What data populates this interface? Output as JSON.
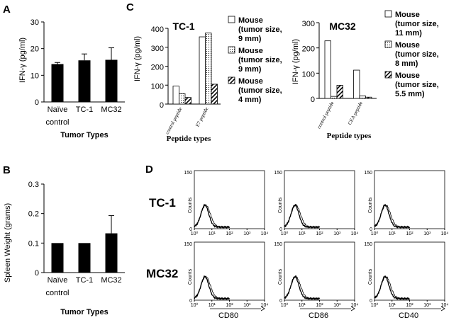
{
  "panels": {
    "A": {
      "letter": "A"
    },
    "B": {
      "letter": "B"
    },
    "C": {
      "letter": "C"
    },
    "D": {
      "letter": "D"
    }
  },
  "colors": {
    "bar_fill": "#000000",
    "axis": "#000000",
    "open_bar": "#ffffff"
  },
  "chart_data": [
    {
      "id": "A",
      "type": "bar",
      "categories": [
        "Naïve\ncontrol",
        "TC-1",
        "MC32"
      ],
      "category_lines": [
        [
          "Naïve",
          "control"
        ],
        [
          "TC-1"
        ],
        [
          "MC32"
        ]
      ],
      "values": [
        14.2,
        15.6,
        15.8
      ],
      "errors": [
        0.6,
        2.4,
        4.5
      ],
      "ylabel": "IFN-γ (pg/ml)",
      "xlabel": "Tumor Types",
      "ylim": [
        0,
        30
      ],
      "yticks": [
        "0",
        "10",
        "20",
        "30"
      ]
    },
    {
      "id": "B",
      "type": "bar",
      "categories": [
        "Naïve\ncontrol",
        "TC-1",
        "MC32"
      ],
      "category_lines": [
        [
          "Naïve",
          "control"
        ],
        [
          "TC-1"
        ],
        [
          "MC32"
        ]
      ],
      "values": [
        0.1,
        0.1,
        0.133
      ],
      "errors": [
        0,
        0,
        0.06
      ],
      "ylabel": "Spleen Weight (grams)",
      "xlabel": "Tumor Types",
      "ylim": [
        0,
        0.3
      ],
      "yticks": [
        "0",
        "0.1",
        "0.2",
        "0.3"
      ]
    },
    {
      "id": "C1",
      "type": "bar",
      "title": "TC-1",
      "categories": [
        "control peptide",
        "E7 peptide"
      ],
      "series": [
        {
          "name": "Mouse (tumor size, 9 mm)",
          "legend_lines": [
            "Mouse",
            "(tumor size,",
            "9 mm)"
          ],
          "pattern": "open",
          "values": [
            95,
            355
          ]
        },
        {
          "name": "Mouse (tumor size, 9 mm)",
          "legend_lines": [
            "Mouse",
            "(tumor size,",
            "9 mm)"
          ],
          "pattern": "dotted",
          "values": [
            55,
            375
          ]
        },
        {
          "name": "Mouse (tumor size, 4 mm)",
          "legend_lines": [
            "Mouse",
            "(tumor size,",
            "4 mm)"
          ],
          "pattern": "hatched",
          "values": [
            35,
            105
          ]
        }
      ],
      "ylabel": "IFN-γ (pg/ml)",
      "xlabel": "Peptide types",
      "ylim": [
        0,
        400
      ],
      "yticks": [
        "0",
        "100",
        "200",
        "300",
        "400"
      ]
    },
    {
      "id": "C2",
      "type": "bar",
      "title": "MC32",
      "categories": [
        "control peptide",
        "CEA peptide"
      ],
      "series": [
        {
          "name": "Mouse (tumor size, 11 mm)",
          "legend_lines": [
            "Mouse",
            "(tumor size,",
            "11 mm)"
          ],
          "pattern": "open",
          "values": [
            228,
            112
          ]
        },
        {
          "name": "Mouse (tumor size, 8 mm)",
          "legend_lines": [
            "Mouse",
            "(tumor size,",
            "8 mm)"
          ],
          "pattern": "dotted",
          "values": [
            8,
            10
          ]
        },
        {
          "name": "Mouse (tumor size, 5.5 mm)",
          "legend_lines": [
            "Mouse",
            "(tumor size,",
            "5.5 mm)"
          ],
          "pattern": "hatched",
          "values": [
            52,
            5
          ]
        }
      ],
      "ylabel": "IFN-γ (pg/ml)",
      "xlabel": "Peptide types",
      "ylim": [
        0,
        300
      ],
      "yticks": [
        "0",
        "100",
        "200",
        "300"
      ]
    },
    {
      "id": "D",
      "type": "histogram-grid",
      "rows": [
        "TC-1",
        "MC32"
      ],
      "columns": [
        "CD80",
        "CD86",
        "CD40"
      ],
      "ylabel": "Counts",
      "ylim": [
        0,
        150
      ],
      "yticks": [
        "0",
        "150"
      ],
      "xticks": [
        "10⁰",
        "10¹",
        "10²",
        "10³",
        "10⁴"
      ],
      "peak_decade": 0.6
    }
  ]
}
